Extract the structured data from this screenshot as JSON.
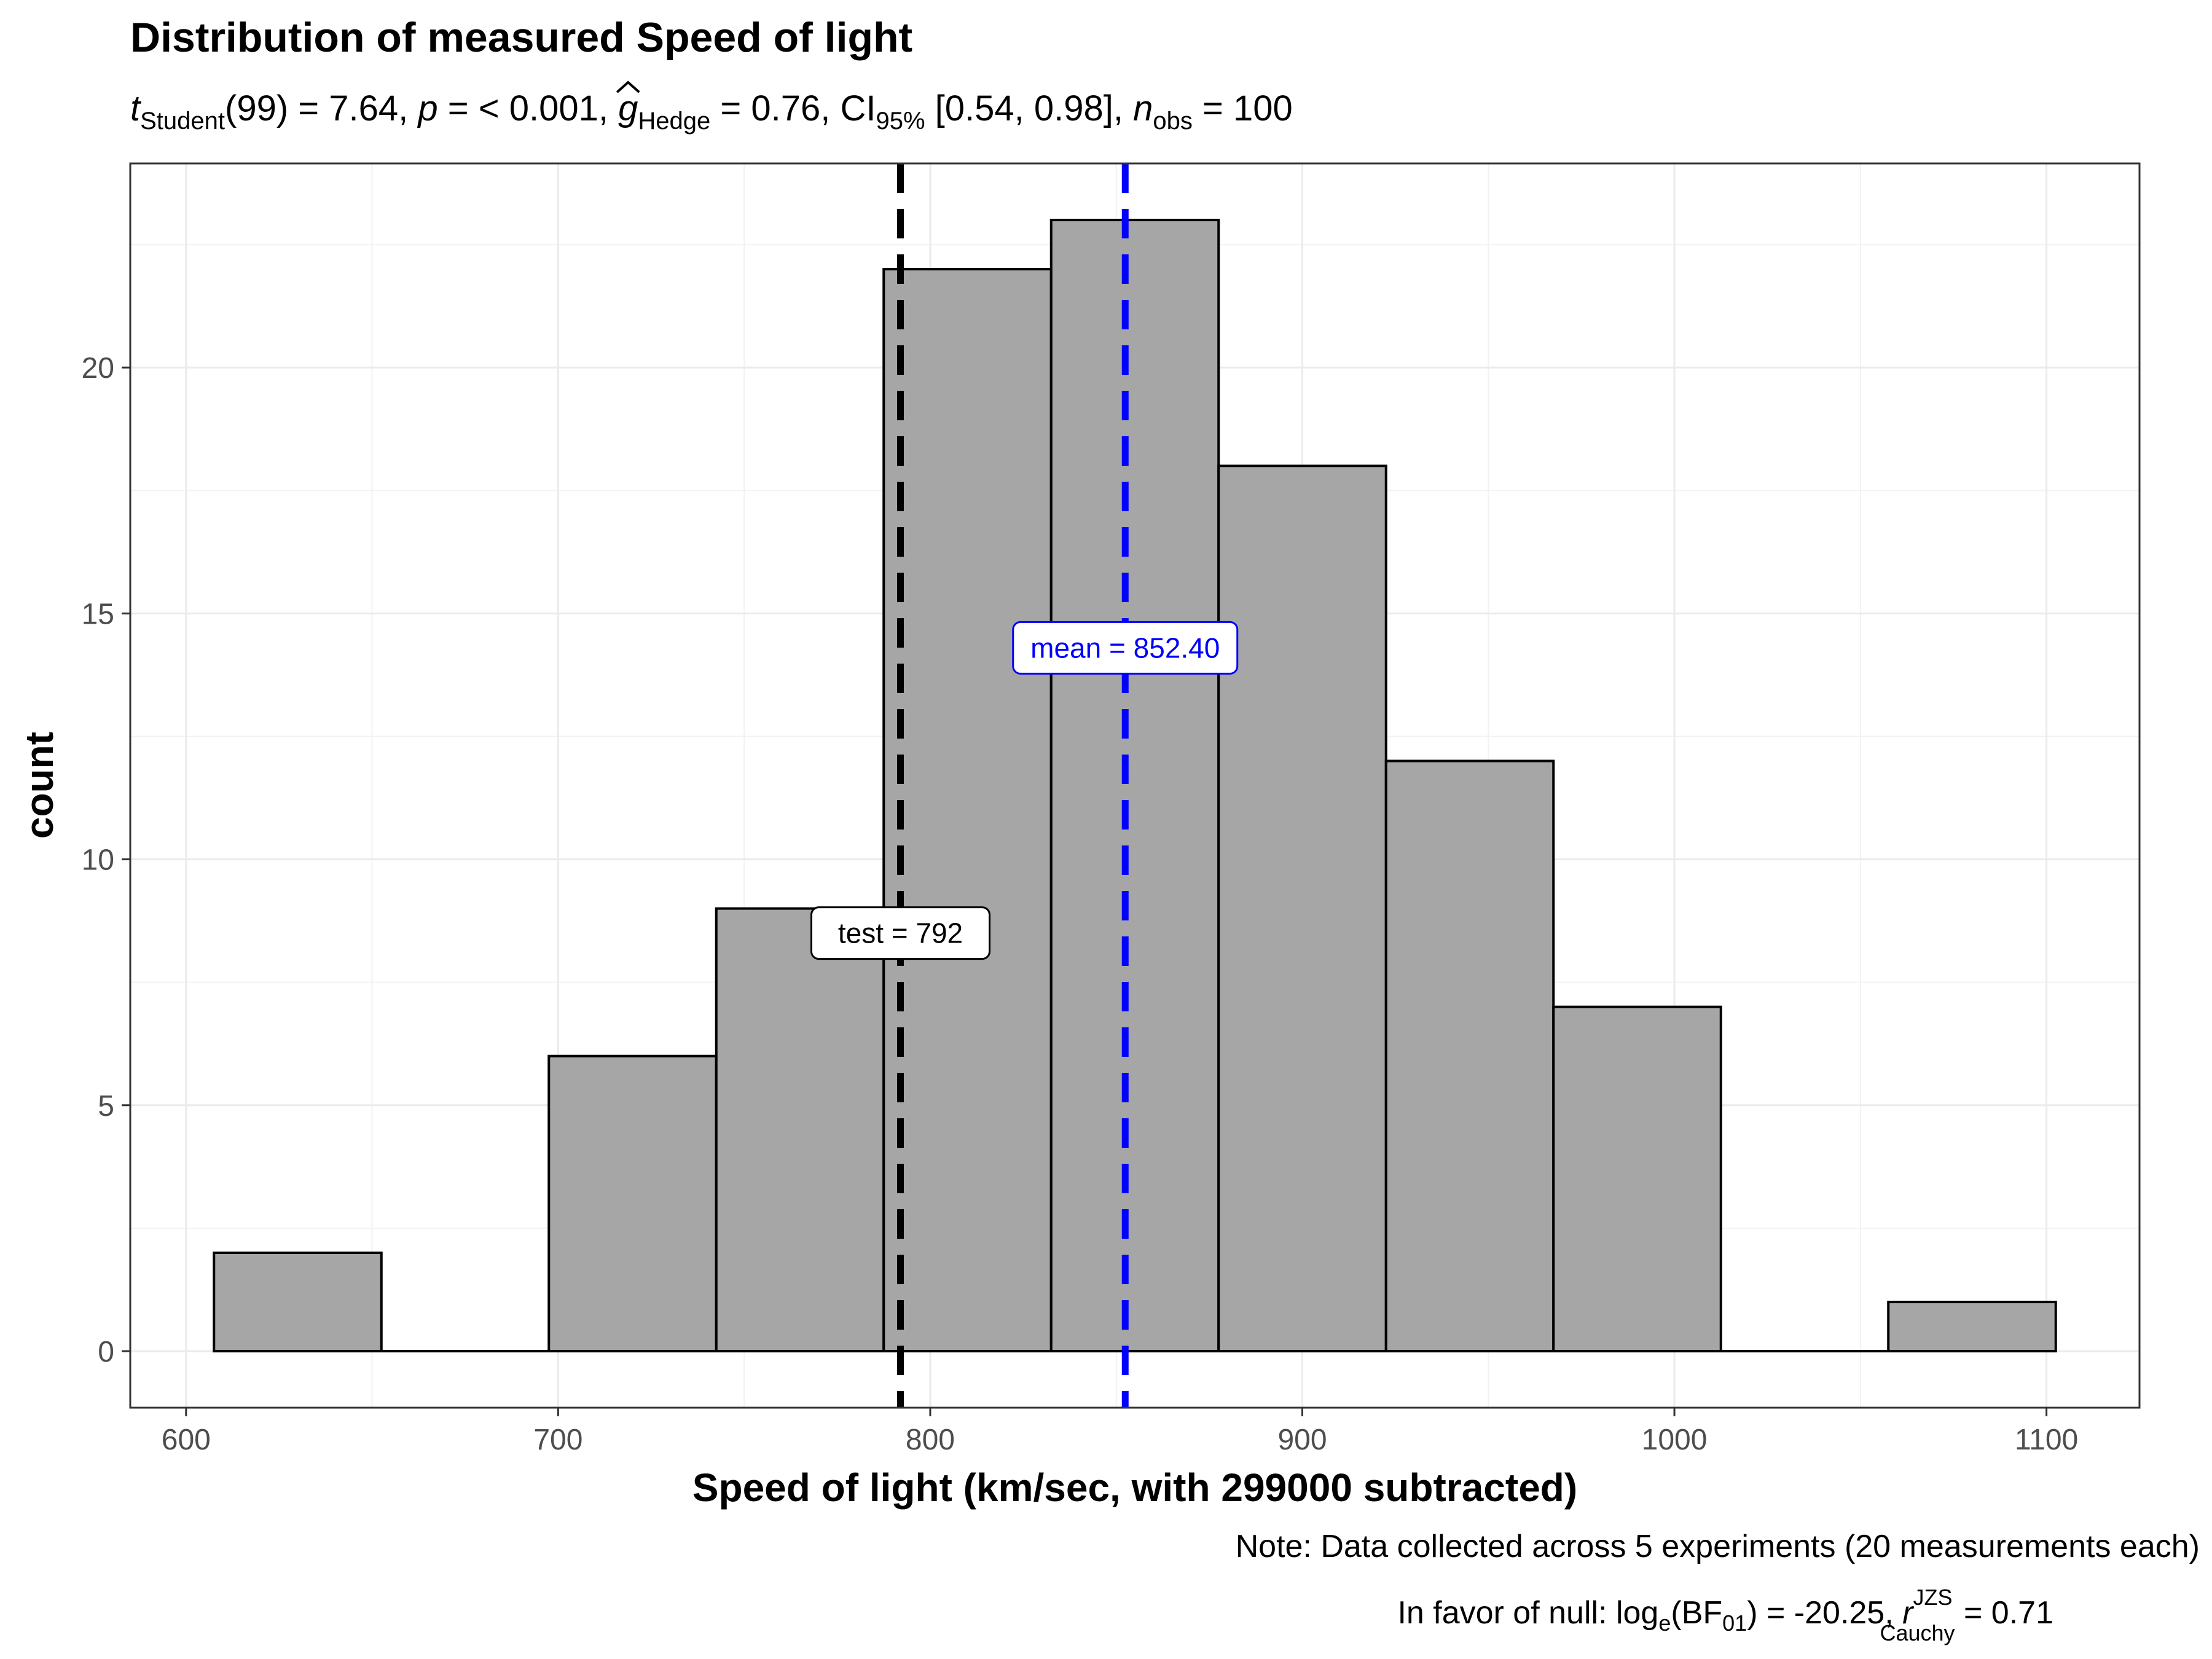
{
  "chart_data": {
    "type": "bar",
    "title": "Distribution of measured Speed of light",
    "subtitle": {
      "t_symbol": "t",
      "t_sub": "Student",
      "t_df": "(99) = 7.64, ",
      "p_symbol": "p",
      "p_value": " = < 0.001, ",
      "g_symbol": "g",
      "g_sub": "Hedge",
      "g_value": " = 0.76, CI",
      "ci_sub": "95%",
      "ci_value": " [0.54, 0.98], ",
      "n_symbol": "n",
      "n_sub": "obs",
      "n_value": " = 100"
    },
    "xlabel": "Speed of light (km/sec, with 299000 subtracted)",
    "ylabel": "count",
    "xlim": [
      585,
      1125
    ],
    "ylim": [
      -1.15,
      24.15
    ],
    "x_ticks": [
      600,
      700,
      800,
      900,
      1000,
      1100
    ],
    "y_ticks": [
      0,
      5,
      10,
      15,
      20
    ],
    "grid": true,
    "bins": [
      {
        "x0": 607.5,
        "x1": 652.5,
        "count": 2
      },
      {
        "x0": 652.5,
        "x1": 697.5,
        "count": 0
      },
      {
        "x0": 697.5,
        "x1": 742.5,
        "count": 6
      },
      {
        "x0": 742.5,
        "x1": 787.5,
        "count": 9
      },
      {
        "x0": 787.5,
        "x1": 832.5,
        "count": 22
      },
      {
        "x0": 832.5,
        "x1": 877.5,
        "count": 23
      },
      {
        "x0": 877.5,
        "x1": 922.5,
        "count": 18
      },
      {
        "x0": 922.5,
        "x1": 967.5,
        "count": 12
      },
      {
        "x0": 967.5,
        "x1": 1012.5,
        "count": 7
      },
      {
        "x0": 1012.5,
        "x1": 1057.5,
        "count": 0
      },
      {
        "x0": 1057.5,
        "x1": 1102.5,
        "count": 1
      }
    ],
    "bar_fill": "#a6a6a6",
    "bar_stroke": "#000000",
    "test_line": {
      "x": 792,
      "label": "test = 792",
      "label_y": 8.5,
      "color": "#000000"
    },
    "mean_line": {
      "x": 852.4,
      "label": "mean = 852.40",
      "label_y": 14.3,
      "color": "#0000ff"
    },
    "caption": {
      "line1": "Note: Data collected across 5 experiments (20 measurements each)",
      "line2_a": "In favor of null: log",
      "line2_e": "e",
      "line2_b": "(BF",
      "line2_01": "01",
      "line2_c": ") = -20.25, ",
      "line2_r": "r",
      "line2_sup": "JZS",
      "line2_sub": "Cauchy",
      "line2_d": " = 0.71"
    }
  }
}
